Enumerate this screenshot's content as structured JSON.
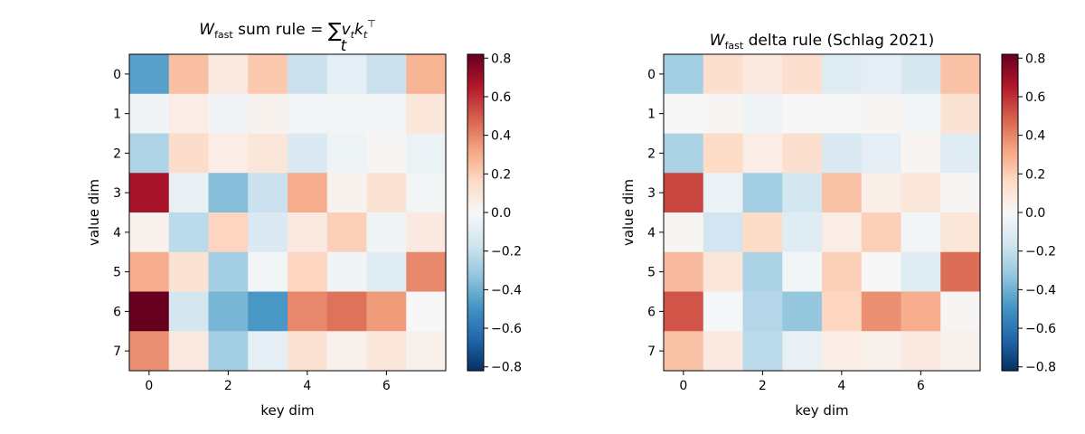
{
  "colormap": {
    "name": "RdBu_r",
    "stops": [
      "#053061",
      "#2166ac",
      "#4393c3",
      "#92c5de",
      "#d1e5f0",
      "#f7f7f7",
      "#fddbc7",
      "#f4a582",
      "#d6604d",
      "#b2182b",
      "#67001f"
    ]
  },
  "chart_data": [
    {
      "type": "heatmap",
      "title": {
        "w": "W",
        "sub": "fast",
        "text": " sum rule = ",
        "sum": "∑",
        "sum_sub": "t",
        "expr_v": "v",
        "expr_vsub": "t",
        "expr_k": "k",
        "expr_ksub": "t",
        "expr_ksup": "⊤"
      },
      "xlabel": "key dim",
      "ylabel": "value dim",
      "x_ticks": [
        "0",
        "2",
        "4",
        "6"
      ],
      "y_ticks": [
        "0",
        "1",
        "2",
        "3",
        "4",
        "5",
        "6",
        "7"
      ],
      "colorbar_ticks": [
        "−0.8",
        "−0.6",
        "−0.4",
        "−0.2",
        "0.0",
        "0.2",
        "0.4",
        "0.6",
        "0.8"
      ],
      "colorbar_values": [
        -0.8,
        -0.6,
        -0.4,
        -0.2,
        0.0,
        0.2,
        0.4,
        0.6,
        0.8
      ],
      "vmin": -0.82,
      "vmax": 0.82,
      "rows": 8,
      "cols": 8,
      "values": [
        [
          -0.45,
          0.25,
          0.08,
          0.22,
          -0.18,
          -0.08,
          -0.18,
          0.28
        ],
        [
          -0.03,
          0.06,
          -0.03,
          0.03,
          -0.02,
          -0.02,
          -0.02,
          0.1
        ],
        [
          -0.25,
          0.15,
          0.06,
          0.1,
          -0.12,
          -0.04,
          0.01,
          -0.05
        ],
        [
          0.68,
          -0.06,
          -0.35,
          -0.18,
          0.3,
          0.03,
          0.12,
          -0.02
        ],
        [
          0.04,
          -0.22,
          0.18,
          -0.12,
          0.08,
          0.2,
          -0.03,
          0.08
        ],
        [
          0.3,
          0.12,
          -0.28,
          -0.02,
          0.18,
          -0.03,
          -0.1,
          0.4
        ],
        [
          0.82,
          -0.15,
          -0.38,
          -0.48,
          0.4,
          0.45,
          0.35,
          0.0
        ],
        [
          0.38,
          0.08,
          -0.28,
          -0.08,
          0.12,
          0.04,
          0.1,
          0.04
        ]
      ]
    },
    {
      "type": "heatmap",
      "title": {
        "w": "W",
        "sub": "fast",
        "text": " delta rule (Schlag 2021)"
      },
      "xlabel": "key dim",
      "ylabel": "value dim",
      "x_ticks": [
        "0",
        "2",
        "4",
        "6"
      ],
      "y_ticks": [
        "0",
        "1",
        "2",
        "3",
        "4",
        "5",
        "6",
        "7"
      ],
      "colorbar_ticks": [
        "−0.8",
        "−0.6",
        "−0.4",
        "−0.2",
        "0.0",
        "0.2",
        "0.4",
        "0.6",
        "0.8"
      ],
      "colorbar_values": [
        -0.8,
        -0.6,
        -0.4,
        -0.2,
        0.0,
        0.2,
        0.4,
        0.6,
        0.8
      ],
      "vmin": -0.82,
      "vmax": 0.82,
      "rows": 8,
      "cols": 8,
      "values": [
        [
          -0.28,
          0.14,
          0.08,
          0.14,
          -0.1,
          -0.08,
          -0.14,
          0.24
        ],
        [
          0.0,
          0.01,
          -0.03,
          0.0,
          0.0,
          0.02,
          -0.02,
          0.12
        ],
        [
          -0.26,
          0.16,
          0.06,
          0.14,
          -0.12,
          -0.08,
          0.02,
          -0.1
        ],
        [
          0.55,
          -0.05,
          -0.28,
          -0.15,
          0.24,
          0.05,
          0.1,
          0.01
        ],
        [
          0.01,
          -0.16,
          0.16,
          -0.1,
          0.06,
          0.2,
          -0.02,
          0.1
        ],
        [
          0.26,
          0.1,
          -0.26,
          -0.02,
          0.2,
          0.0,
          -0.1,
          0.46
        ],
        [
          0.52,
          -0.01,
          -0.24,
          -0.32,
          0.18,
          0.38,
          0.3,
          0.01
        ],
        [
          0.24,
          0.08,
          -0.22,
          -0.06,
          0.06,
          0.04,
          0.08,
          0.04
        ]
      ]
    }
  ]
}
